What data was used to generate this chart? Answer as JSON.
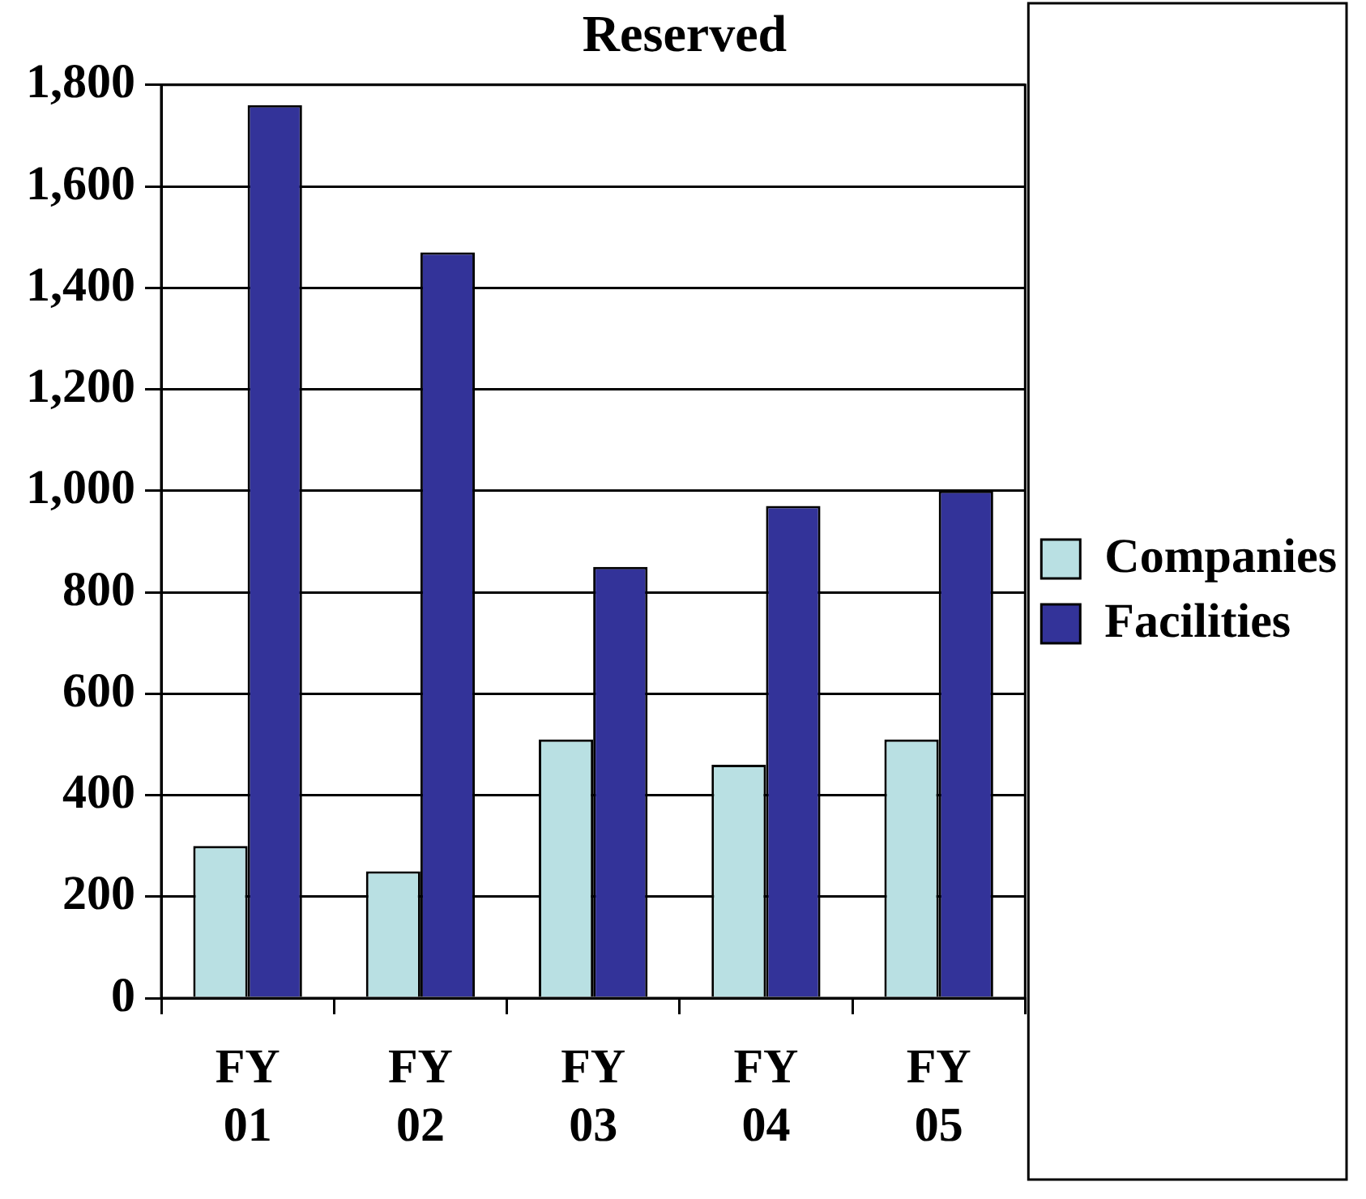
{
  "chart_data": {
    "type": "bar",
    "title": "Reserved",
    "categories": [
      "FY 01",
      "FY 02",
      "FY 03",
      "FY 04",
      "FY 05"
    ],
    "series": [
      {
        "name": "Companies",
        "color": "#b9e0e3",
        "values": [
          300,
          250,
          510,
          460,
          510
        ]
      },
      {
        "name": "Facilities",
        "color": "#333399",
        "values": [
          1760,
          1470,
          850,
          970,
          1000
        ]
      }
    ],
    "ylim": [
      0,
      1800
    ],
    "yticks": [
      {
        "value": 0,
        "label": "0"
      },
      {
        "value": 200,
        "label": "200"
      },
      {
        "value": 400,
        "label": "400"
      },
      {
        "value": 600,
        "label": "600"
      },
      {
        "value": 800,
        "label": "800"
      },
      {
        "value": 1000,
        "label": "1,000"
      },
      {
        "value": 1200,
        "label": "1,200"
      },
      {
        "value": 1400,
        "label": "1,400"
      },
      {
        "value": 1600,
        "label": "1,600"
      },
      {
        "value": 1800,
        "label": "1,800"
      }
    ],
    "grid": "y",
    "legend": "right"
  }
}
